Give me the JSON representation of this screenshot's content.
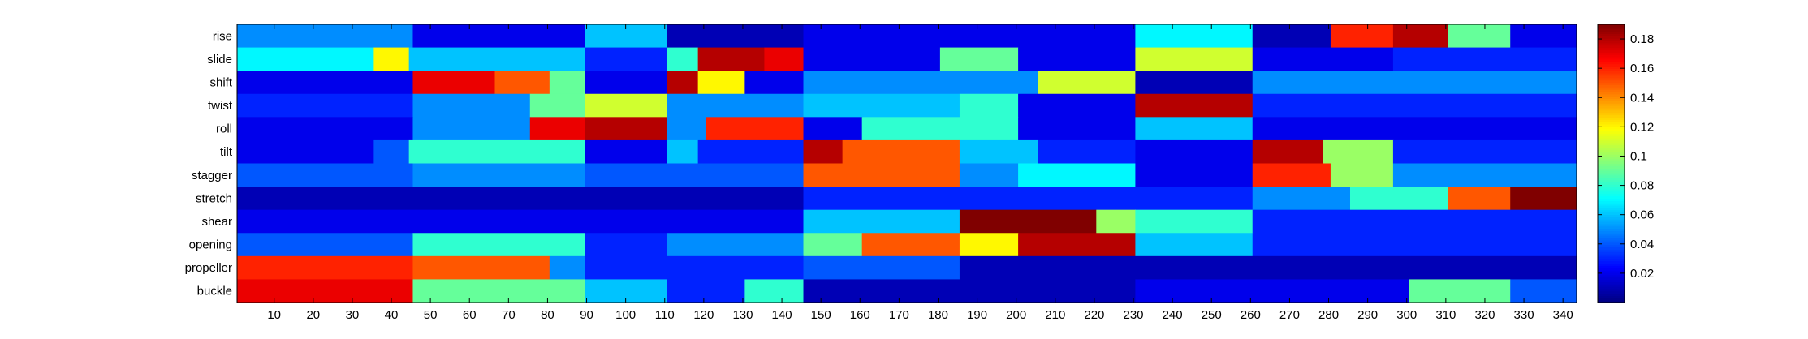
{
  "chart_data": {
    "type": "heatmap",
    "title": "",
    "xlabel": "",
    "ylabel": "",
    "rows": [
      "rise",
      "slide",
      "shift",
      "twist",
      "roll",
      "tilt",
      "stagger",
      "stretch",
      "shear",
      "opening",
      "propeller",
      "buckle"
    ],
    "xlim": [
      0.5,
      343.5
    ],
    "x_tick_values": [
      10,
      20,
      30,
      40,
      50,
      60,
      70,
      80,
      90,
      100,
      110,
      120,
      130,
      140,
      150,
      160,
      170,
      180,
      190,
      200,
      210,
      220,
      230,
      240,
      250,
      260,
      270,
      280,
      290,
      300,
      310,
      320,
      330,
      340
    ],
    "x_tick_labels": [
      "10",
      "20",
      "30",
      "40",
      "50",
      "60",
      "70",
      "80",
      "90",
      "100",
      "110",
      "120",
      "130",
      "140",
      "150",
      "160",
      "170",
      "180",
      "190",
      "200",
      "210",
      "220",
      "230",
      "240",
      "250",
      "260",
      "270",
      "280",
      "290",
      "300",
      "310",
      "320",
      "330",
      "340"
    ],
    "colorbar": {
      "colormap": "jet",
      "clim": [
        0.0,
        0.19
      ],
      "tick_values": [
        0.02,
        0.04,
        0.06,
        0.08,
        0.1,
        0.12,
        0.14,
        0.16,
        0.18
      ],
      "tick_labels": [
        "0.02",
        "0.04",
        "0.06",
        "0.08",
        "0.1",
        "0.12",
        "0.14",
        "0.16",
        "0.18"
      ]
    },
    "cell_values_approx": {
      "note_segments": "each row lists [x_start, x_end, value]",
      "rise": [
        [
          1,
          45,
          0.05
        ],
        [
          46,
          89,
          0.02
        ],
        [
          90,
          110,
          0.06
        ],
        [
          111,
          145,
          0.01
        ],
        [
          146,
          230,
          0.02
        ],
        [
          231,
          260,
          0.07
        ],
        [
          261,
          280,
          0.01
        ],
        [
          281,
          296,
          0.16
        ],
        [
          297,
          310,
          0.18
        ],
        [
          311,
          326,
          0.09
        ],
        [
          327,
          343,
          0.02
        ]
      ],
      "slide": [
        [
          1,
          35,
          0.07
        ],
        [
          36,
          44,
          0.12
        ],
        [
          45,
          89,
          0.06
        ],
        [
          90,
          110,
          0.03
        ],
        [
          111,
          118,
          0.08
        ],
        [
          119,
          135,
          0.18
        ],
        [
          136,
          145,
          0.17
        ],
        [
          146,
          180,
          0.02
        ],
        [
          181,
          200,
          0.09
        ],
        [
          201,
          230,
          0.02
        ],
        [
          231,
          260,
          0.11
        ],
        [
          261,
          296,
          0.02
        ],
        [
          297,
          343,
          0.03
        ]
      ],
      "shift": [
        [
          1,
          45,
          0.02
        ],
        [
          46,
          66,
          0.17
        ],
        [
          67,
          80,
          0.15
        ],
        [
          81,
          89,
          0.09
        ],
        [
          90,
          110,
          0.02
        ],
        [
          111,
          118,
          0.18
        ],
        [
          119,
          130,
          0.12
        ],
        [
          131,
          145,
          0.02
        ],
        [
          146,
          205,
          0.05
        ],
        [
          206,
          230,
          0.11
        ],
        [
          231,
          260,
          0.01
        ],
        [
          261,
          343,
          0.05
        ]
      ],
      "twist": [
        [
          1,
          45,
          0.03
        ],
        [
          46,
          75,
          0.05
        ],
        [
          76,
          89,
          0.09
        ],
        [
          90,
          110,
          0.11
        ],
        [
          111,
          145,
          0.05
        ],
        [
          146,
          185,
          0.06
        ],
        [
          186,
          200,
          0.08
        ],
        [
          201,
          230,
          0.02
        ],
        [
          231,
          260,
          0.18
        ],
        [
          261,
          343,
          0.03
        ]
      ],
      "roll": [
        [
          1,
          45,
          0.02
        ],
        [
          46,
          75,
          0.05
        ],
        [
          76,
          89,
          0.17
        ],
        [
          90,
          110,
          0.18
        ],
        [
          111,
          120,
          0.05
        ],
        [
          121,
          145,
          0.16
        ],
        [
          146,
          160,
          0.02
        ],
        [
          161,
          200,
          0.08
        ],
        [
          201,
          230,
          0.02
        ],
        [
          231,
          260,
          0.06
        ],
        [
          261,
          343,
          0.02
        ]
      ],
      "tilt": [
        [
          1,
          35,
          0.02
        ],
        [
          36,
          44,
          0.04
        ],
        [
          45,
          89,
          0.08
        ],
        [
          90,
          110,
          0.02
        ],
        [
          111,
          118,
          0.06
        ],
        [
          119,
          145,
          0.03
        ],
        [
          146,
          155,
          0.18
        ],
        [
          156,
          185,
          0.15
        ],
        [
          186,
          205,
          0.06
        ],
        [
          206,
          230,
          0.03
        ],
        [
          231,
          260,
          0.02
        ],
        [
          261,
          278,
          0.18
        ],
        [
          279,
          296,
          0.1
        ],
        [
          297,
          343,
          0.03
        ]
      ],
      "stagger": [
        [
          1,
          45,
          0.04
        ],
        [
          46,
          89,
          0.05
        ],
        [
          90,
          145,
          0.04
        ],
        [
          146,
          185,
          0.15
        ],
        [
          186,
          200,
          0.05
        ],
        [
          201,
          230,
          0.07
        ],
        [
          231,
          260,
          0.02
        ],
        [
          261,
          280,
          0.16
        ],
        [
          281,
          296,
          0.1
        ],
        [
          297,
          343,
          0.05
        ]
      ],
      "stretch": [
        [
          1,
          145,
          0.01
        ],
        [
          146,
          260,
          0.03
        ],
        [
          261,
          285,
          0.05
        ],
        [
          286,
          310,
          0.08
        ],
        [
          311,
          326,
          0.15
        ],
        [
          327,
          343,
          0.19
        ]
      ],
      "shear": [
        [
          1,
          145,
          0.02
        ],
        [
          146,
          185,
          0.06
        ],
        [
          186,
          220,
          0.19
        ],
        [
          221,
          230,
          0.1
        ],
        [
          231,
          260,
          0.08
        ],
        [
          261,
          343,
          0.03
        ]
      ],
      "opening": [
        [
          1,
          45,
          0.04
        ],
        [
          46,
          89,
          0.08
        ],
        [
          90,
          110,
          0.03
        ],
        [
          111,
          145,
          0.05
        ],
        [
          146,
          160,
          0.09
        ],
        [
          161,
          185,
          0.15
        ],
        [
          186,
          200,
          0.12
        ],
        [
          201,
          230,
          0.18
        ],
        [
          231,
          260,
          0.06
        ],
        [
          261,
          343,
          0.03
        ]
      ],
      "propeller": [
        [
          1,
          45,
          0.16
        ],
        [
          46,
          80,
          0.15
        ],
        [
          81,
          89,
          0.05
        ],
        [
          90,
          145,
          0.03
        ],
        [
          146,
          185,
          0.04
        ],
        [
          186,
          343,
          0.01
        ]
      ],
      "buckle": [
        [
          1,
          45,
          0.17
        ],
        [
          46,
          89,
          0.09
        ],
        [
          90,
          110,
          0.06
        ],
        [
          111,
          130,
          0.03
        ],
        [
          131,
          145,
          0.08
        ],
        [
          146,
          230,
          0.01
        ],
        [
          231,
          300,
          0.02
        ],
        [
          301,
          326,
          0.09
        ],
        [
          327,
          343,
          0.04
        ]
      ]
    }
  }
}
